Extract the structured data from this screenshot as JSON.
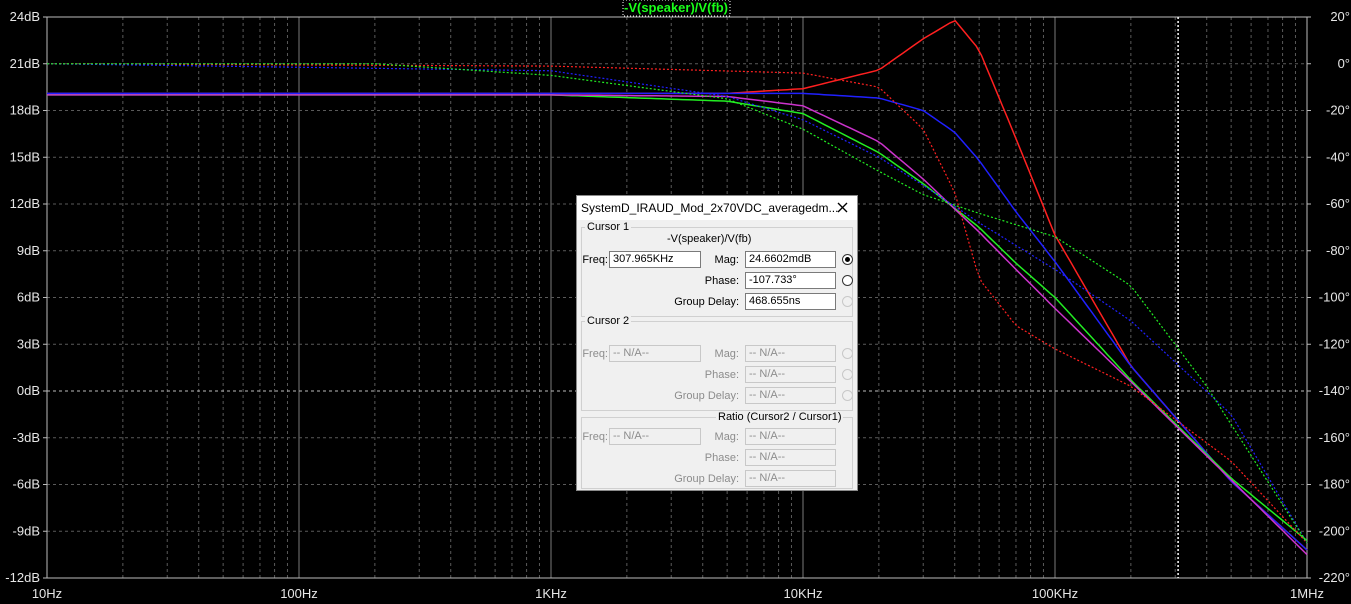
{
  "chart_data": {
    "type": "line",
    "title": "-V(speaker)/V(fb)",
    "x_scale": "log",
    "xlim": [
      10,
      1000000
    ],
    "x_ticks": [
      {
        "value": 10,
        "label": "10Hz"
      },
      {
        "value": 100,
        "label": "100Hz"
      },
      {
        "value": 1000,
        "label": "1KHz"
      },
      {
        "value": 10000,
        "label": "10KHz"
      },
      {
        "value": 100000,
        "label": "100KHz"
      },
      {
        "value": 1000000,
        "label": "1MHz"
      }
    ],
    "y_left": {
      "ylim": [
        -12,
        24
      ],
      "ticks": [
        {
          "value": 24,
          "label": "24dB"
        },
        {
          "value": 21,
          "label": "21dB"
        },
        {
          "value": 18,
          "label": "18dB"
        },
        {
          "value": 15,
          "label": "15dB"
        },
        {
          "value": 12,
          "label": "12dB"
        },
        {
          "value": 9,
          "label": "9dB"
        },
        {
          "value": 6,
          "label": "6dB"
        },
        {
          "value": 3,
          "label": "3dB"
        },
        {
          "value": 0,
          "label": "0dB"
        },
        {
          "value": -3,
          "label": "-3dB"
        },
        {
          "value": -6,
          "label": "-6dB"
        },
        {
          "value": -9,
          "label": "-9dB"
        },
        {
          "value": -12,
          "label": "-12dB"
        }
      ]
    },
    "y_right": {
      "ylim": [
        -220,
        20
      ],
      "ticks": [
        {
          "value": 20,
          "label": "20°"
        },
        {
          "value": 0,
          "label": "0°"
        },
        {
          "value": -20,
          "label": "-20°"
        },
        {
          "value": -40,
          "label": "-40°"
        },
        {
          "value": -60,
          "label": "-60°"
        },
        {
          "value": -80,
          "label": "-80°"
        },
        {
          "value": -100,
          "label": "-100°"
        },
        {
          "value": -120,
          "label": "-120°"
        },
        {
          "value": -140,
          "label": "-140°"
        },
        {
          "value": -160,
          "label": "-160°"
        },
        {
          "value": -180,
          "label": "-180°"
        },
        {
          "value": -200,
          "label": "-200°"
        },
        {
          "value": -220,
          "label": "-220°"
        }
      ]
    },
    "grid": true,
    "cursor_x": 307965,
    "series": [
      {
        "color": "#ff2020",
        "style": "solid",
        "axis": "left",
        "x": [
          10,
          100,
          1000,
          5000,
          10000,
          20000,
          30000,
          40000,
          50000,
          70000,
          100000,
          200000,
          500000,
          1000000
        ],
        "values": [
          19.1,
          19.1,
          19.1,
          19.1,
          19.4,
          20.6,
          22.6,
          23.8,
          21.9,
          16.2,
          10.0,
          1.6,
          -5.8,
          -10.2
        ]
      },
      {
        "color": "#2020ff",
        "style": "solid",
        "axis": "left",
        "x": [
          10,
          100,
          1000,
          5000,
          10000,
          20000,
          30000,
          40000,
          50000,
          70000,
          100000,
          200000,
          500000,
          1000000
        ],
        "values": [
          19.1,
          19.1,
          19.1,
          19.1,
          19.1,
          18.8,
          18.0,
          16.6,
          14.8,
          11.5,
          8.3,
          1.6,
          -5.8,
          -10.2
        ]
      },
      {
        "color": "#22ee22",
        "style": "solid",
        "axis": "left",
        "x": [
          10,
          100,
          1000,
          5000,
          10000,
          20000,
          30000,
          50000,
          70000,
          100000,
          200000,
          500000,
          1000000
        ],
        "values": [
          19.0,
          19.0,
          19.0,
          18.6,
          17.8,
          15.3,
          13.3,
          10.5,
          8.2,
          6.0,
          0.7,
          -5.6,
          -9.6
        ]
      },
      {
        "color": "#cc33cc",
        "style": "solid",
        "axis": "left",
        "x": [
          10,
          100,
          1000,
          5000,
          10000,
          20000,
          30000,
          50000,
          70000,
          100000,
          200000,
          500000,
          1000000
        ],
        "values": [
          19.0,
          19.0,
          19.0,
          18.9,
          18.3,
          16.0,
          13.6,
          10.2,
          7.8,
          5.3,
          0.6,
          -5.7,
          -10.5
        ]
      },
      {
        "color": "#ff2020",
        "style": "dotted",
        "axis": "right",
        "x": [
          10,
          1000,
          10000,
          20000,
          30000,
          40000,
          50000,
          70000,
          100000,
          200000,
          500000,
          1000000
        ],
        "values": [
          0,
          -1,
          -4,
          -10,
          -28,
          -55,
          -92,
          -112,
          -122,
          -138,
          -170,
          -205
        ]
      },
      {
        "color": "#2020ff",
        "style": "dotted",
        "axis": "right",
        "x": [
          10,
          1000,
          5000,
          10000,
          20000,
          30000,
          50000,
          100000,
          200000,
          500000,
          1000000
        ],
        "values": [
          0,
          -3,
          -14,
          -24,
          -40,
          -52,
          -68,
          -88,
          -110,
          -150,
          -205
        ]
      },
      {
        "color": "#22ee22",
        "style": "dotted",
        "axis": "right",
        "x": [
          10,
          200,
          1000,
          5000,
          10000,
          20000,
          30000,
          50000,
          100000,
          200000,
          400000,
          1000000
        ],
        "values": [
          0,
          0,
          -5,
          -15,
          -28,
          -46,
          -56,
          -64,
          -74,
          -95,
          -138,
          -205
        ]
      }
    ]
  },
  "dialog": {
    "title": "SystemD_IRAUD_Mod_2x70VDC_averagedm...",
    "close_icon": "close-icon",
    "cursor1": {
      "label": "Cursor 1",
      "trace": "-V(speaker)/V(fb)",
      "freq_label": "Freq:",
      "freq": "307.965KHz",
      "mag_label": "Mag:",
      "mag": "24.6602mdB",
      "phase_label": "Phase:",
      "phase": "-107.733°",
      "gd_label": "Group Delay:",
      "gd": "468.655ns"
    },
    "cursor2": {
      "label": "Cursor 2",
      "freq_label": "Freq:",
      "freq": "-- N/A--",
      "mag_label": "Mag:",
      "mag": "-- N/A--",
      "phase_label": "Phase:",
      "phase": "-- N/A--",
      "gd_label": "Group Delay:",
      "gd": "-- N/A--"
    },
    "ratio": {
      "label": "Ratio (Cursor2 / Cursor1)",
      "freq_label": "Freq:",
      "freq": "-- N/A--",
      "mag_label": "Mag:",
      "mag": "-- N/A--",
      "phase_label": "Phase:",
      "phase": "-- N/A--",
      "gd_label": "Group Delay:",
      "gd": "-- N/A--"
    }
  }
}
